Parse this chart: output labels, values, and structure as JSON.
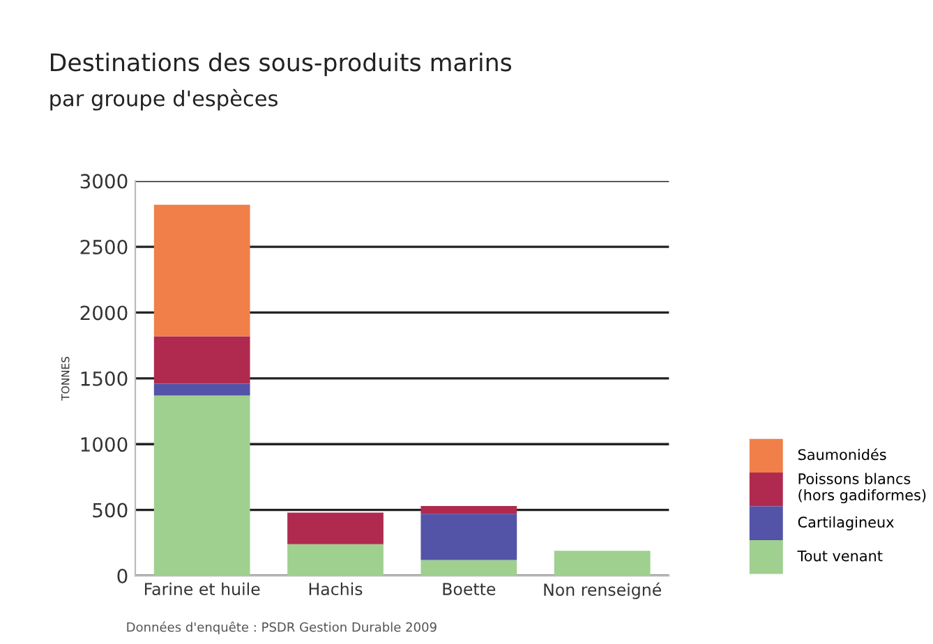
{
  "chart_data": {
    "type": "bar",
    "title": "Destinations des sous-produits marins",
    "subtitle": "par groupe d'espèces",
    "ylabel": "TONNES",
    "categories": [
      "Farine et huile",
      "Hachis",
      "Boette",
      "Non renseigné"
    ],
    "stacked": true,
    "series": [
      {
        "name": "Tout venant",
        "color": "#9fd08f",
        "values": [
          1370,
          240,
          120,
          190
        ]
      },
      {
        "name": "Cartilagineux",
        "color": "#5353a8",
        "values": [
          90,
          null,
          350,
          null
        ]
      },
      {
        "name": "Poissons blancs\n(hors gadiformes)",
        "color": "#b02a50",
        "values": [
          360,
          240,
          60,
          null
        ]
      },
      {
        "name": "Saumonidés",
        "color": "#f07f4a",
        "values": [
          1000,
          null,
          null,
          null
        ]
      }
    ],
    "ylim": [
      0,
      3000
    ],
    "yticks": [
      0,
      500,
      1000,
      1500,
      2000,
      2500,
      3000
    ],
    "grid": "y",
    "legend": "right",
    "annotations": [
      "Données d'enquête : PSDR Gestion Durable 2009"
    ]
  }
}
